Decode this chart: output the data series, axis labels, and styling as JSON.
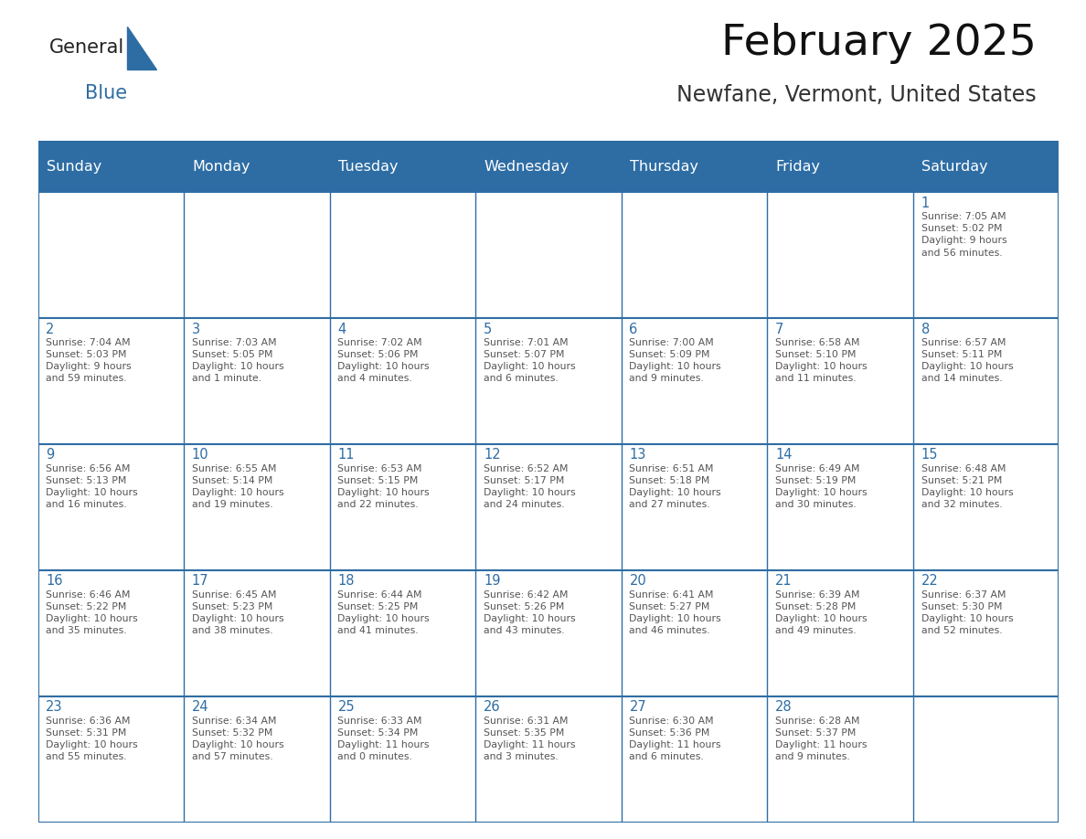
{
  "title": "February 2025",
  "subtitle": "Newfane, Vermont, United States",
  "header_bg": "#2e6da4",
  "header_text": "#ffffff",
  "cell_bg": "#ffffff",
  "day_num_color": "#2e6da4",
  "cell_text_color": "#555555",
  "border_color": "#2e6da4",
  "days_of_week": [
    "Sunday",
    "Monday",
    "Tuesday",
    "Wednesday",
    "Thursday",
    "Friday",
    "Saturday"
  ],
  "weeks": [
    [
      {
        "day": null,
        "text": ""
      },
      {
        "day": null,
        "text": ""
      },
      {
        "day": null,
        "text": ""
      },
      {
        "day": null,
        "text": ""
      },
      {
        "day": null,
        "text": ""
      },
      {
        "day": null,
        "text": ""
      },
      {
        "day": 1,
        "text": "Sunrise: 7:05 AM\nSunset: 5:02 PM\nDaylight: 9 hours\nand 56 minutes."
      }
    ],
    [
      {
        "day": 2,
        "text": "Sunrise: 7:04 AM\nSunset: 5:03 PM\nDaylight: 9 hours\nand 59 minutes."
      },
      {
        "day": 3,
        "text": "Sunrise: 7:03 AM\nSunset: 5:05 PM\nDaylight: 10 hours\nand 1 minute."
      },
      {
        "day": 4,
        "text": "Sunrise: 7:02 AM\nSunset: 5:06 PM\nDaylight: 10 hours\nand 4 minutes."
      },
      {
        "day": 5,
        "text": "Sunrise: 7:01 AM\nSunset: 5:07 PM\nDaylight: 10 hours\nand 6 minutes."
      },
      {
        "day": 6,
        "text": "Sunrise: 7:00 AM\nSunset: 5:09 PM\nDaylight: 10 hours\nand 9 minutes."
      },
      {
        "day": 7,
        "text": "Sunrise: 6:58 AM\nSunset: 5:10 PM\nDaylight: 10 hours\nand 11 minutes."
      },
      {
        "day": 8,
        "text": "Sunrise: 6:57 AM\nSunset: 5:11 PM\nDaylight: 10 hours\nand 14 minutes."
      }
    ],
    [
      {
        "day": 9,
        "text": "Sunrise: 6:56 AM\nSunset: 5:13 PM\nDaylight: 10 hours\nand 16 minutes."
      },
      {
        "day": 10,
        "text": "Sunrise: 6:55 AM\nSunset: 5:14 PM\nDaylight: 10 hours\nand 19 minutes."
      },
      {
        "day": 11,
        "text": "Sunrise: 6:53 AM\nSunset: 5:15 PM\nDaylight: 10 hours\nand 22 minutes."
      },
      {
        "day": 12,
        "text": "Sunrise: 6:52 AM\nSunset: 5:17 PM\nDaylight: 10 hours\nand 24 minutes."
      },
      {
        "day": 13,
        "text": "Sunrise: 6:51 AM\nSunset: 5:18 PM\nDaylight: 10 hours\nand 27 minutes."
      },
      {
        "day": 14,
        "text": "Sunrise: 6:49 AM\nSunset: 5:19 PM\nDaylight: 10 hours\nand 30 minutes."
      },
      {
        "day": 15,
        "text": "Sunrise: 6:48 AM\nSunset: 5:21 PM\nDaylight: 10 hours\nand 32 minutes."
      }
    ],
    [
      {
        "day": 16,
        "text": "Sunrise: 6:46 AM\nSunset: 5:22 PM\nDaylight: 10 hours\nand 35 minutes."
      },
      {
        "day": 17,
        "text": "Sunrise: 6:45 AM\nSunset: 5:23 PM\nDaylight: 10 hours\nand 38 minutes."
      },
      {
        "day": 18,
        "text": "Sunrise: 6:44 AM\nSunset: 5:25 PM\nDaylight: 10 hours\nand 41 minutes."
      },
      {
        "day": 19,
        "text": "Sunrise: 6:42 AM\nSunset: 5:26 PM\nDaylight: 10 hours\nand 43 minutes."
      },
      {
        "day": 20,
        "text": "Sunrise: 6:41 AM\nSunset: 5:27 PM\nDaylight: 10 hours\nand 46 minutes."
      },
      {
        "day": 21,
        "text": "Sunrise: 6:39 AM\nSunset: 5:28 PM\nDaylight: 10 hours\nand 49 minutes."
      },
      {
        "day": 22,
        "text": "Sunrise: 6:37 AM\nSunset: 5:30 PM\nDaylight: 10 hours\nand 52 minutes."
      }
    ],
    [
      {
        "day": 23,
        "text": "Sunrise: 6:36 AM\nSunset: 5:31 PM\nDaylight: 10 hours\nand 55 minutes."
      },
      {
        "day": 24,
        "text": "Sunrise: 6:34 AM\nSunset: 5:32 PM\nDaylight: 10 hours\nand 57 minutes."
      },
      {
        "day": 25,
        "text": "Sunrise: 6:33 AM\nSunset: 5:34 PM\nDaylight: 11 hours\nand 0 minutes."
      },
      {
        "day": 26,
        "text": "Sunrise: 6:31 AM\nSunset: 5:35 PM\nDaylight: 11 hours\nand 3 minutes."
      },
      {
        "day": 27,
        "text": "Sunrise: 6:30 AM\nSunset: 5:36 PM\nDaylight: 11 hours\nand 6 minutes."
      },
      {
        "day": 28,
        "text": "Sunrise: 6:28 AM\nSunset: 5:37 PM\nDaylight: 11 hours\nand 9 minutes."
      },
      {
        "day": null,
        "text": ""
      }
    ]
  ],
  "logo_color1": "#222222",
  "logo_color2": "#2e6da4",
  "title_fontsize": 34,
  "subtitle_fontsize": 17,
  "header_fontsize": 11.5,
  "day_num_fontsize": 10.5,
  "cell_text_fontsize": 7.8
}
